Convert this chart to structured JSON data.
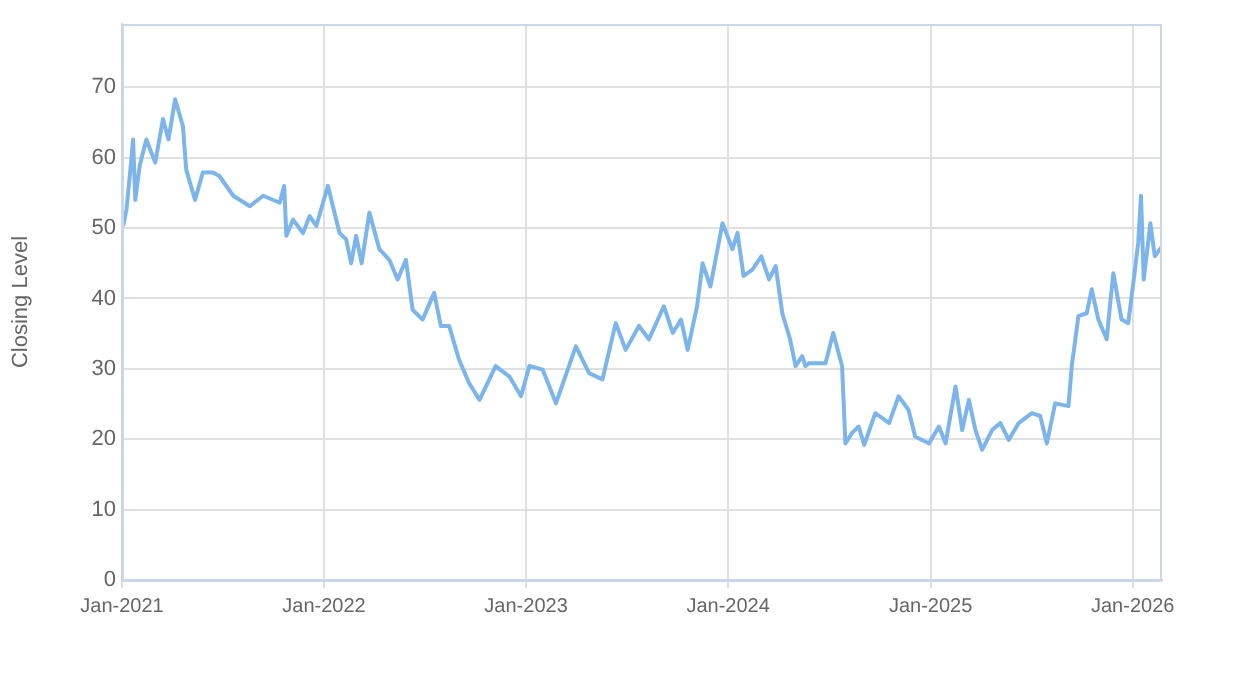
{
  "chart_data": {
    "type": "line",
    "ylabel": "Closing Level",
    "grid": true,
    "legend": false,
    "marker": "none",
    "line_style": "solid",
    "xlim": [
      "2021-01-01",
      "2026-02-23"
    ],
    "xticks": [
      {
        "value": "2021-01-01",
        "label": "Jan-2021"
      },
      {
        "value": "2022-01-01",
        "label": "Jan-2022"
      },
      {
        "value": "2023-01-01",
        "label": "Jan-2023"
      },
      {
        "value": "2024-01-01",
        "label": "Jan-2024"
      },
      {
        "value": "2025-01-01",
        "label": "Jan-2025"
      },
      {
        "value": "2026-01-01",
        "label": "Jan-2026"
      }
    ],
    "ylim": [
      0,
      79
    ],
    "yticks": [
      0,
      10,
      20,
      30,
      40,
      50,
      60,
      70
    ],
    "x": [
      "2021-01-03",
      "2021-01-09",
      "2021-01-18",
      "2021-01-21",
      "2021-01-25",
      "2021-02-02",
      "2021-02-14",
      "2021-03-02",
      "2021-03-16",
      "2021-03-26",
      "2021-04-07",
      "2021-04-21",
      "2021-04-27",
      "2021-05-13",
      "2021-05-27",
      "2021-06-14",
      "2021-06-26",
      "2021-07-21",
      "2021-08-20",
      "2021-09-13",
      "2021-10-13",
      "2021-10-21",
      "2021-10-25",
      "2021-11-06",
      "2021-11-24",
      "2021-12-06",
      "2021-12-18",
      "2022-01-08",
      "2022-01-29",
      "2022-02-10",
      "2022-02-19",
      "2022-02-28",
      "2022-03-10",
      "2022-03-24",
      "2022-04-11",
      "2022-04-29",
      "2022-05-14",
      "2022-05-29",
      "2022-06-10",
      "2022-06-28",
      "2022-07-19",
      "2022-07-31",
      "2022-08-15",
      "2022-09-02",
      "2022-09-20",
      "2022-10-09",
      "2022-11-07",
      "2022-12-02",
      "2022-12-23",
      "2023-01-07",
      "2023-01-31",
      "2023-02-24",
      "2023-04-01",
      "2023-04-25",
      "2023-05-19",
      "2023-06-12",
      "2023-06-30",
      "2023-07-24",
      "2023-08-11",
      "2023-09-07",
      "2023-09-23",
      "2023-10-08",
      "2023-10-20",
      "2023-11-06",
      "2023-11-16",
      "2023-11-30",
      "2023-12-22",
      "2024-01-09",
      "2024-01-18",
      "2024-01-29",
      "2024-02-14",
      "2024-03-01",
      "2024-03-15",
      "2024-03-27",
      "2024-04-08",
      "2024-04-22",
      "2024-05-02",
      "2024-05-14",
      "2024-05-20",
      "2024-05-26",
      "2024-06-25",
      "2024-07-09",
      "2024-07-25",
      "2024-07-31",
      "2024-08-12",
      "2024-08-24",
      "2024-09-03",
      "2024-09-23",
      "2024-10-18",
      "2024-11-04",
      "2024-11-22",
      "2024-12-04",
      "2024-12-29",
      "2025-01-16",
      "2025-01-28",
      "2025-02-15",
      "2025-02-27",
      "2025-03-11",
      "2025-03-23",
      "2025-04-04",
      "2025-04-22",
      "2025-05-07",
      "2025-05-22",
      "2025-06-09",
      "2025-07-03",
      "2025-07-18",
      "2025-07-30",
      "2025-08-14",
      "2025-09-07",
      "2025-09-13",
      "2025-09-25",
      "2025-10-10",
      "2025-10-19",
      "2025-10-31",
      "2025-11-15",
      "2025-11-27",
      "2025-12-12",
      "2025-12-24",
      "2026-01-03",
      "2026-01-11",
      "2026-01-16",
      "2026-01-21",
      "2026-02-02",
      "2026-02-10",
      "2026-02-23"
    ],
    "series": [
      {
        "color": "#7cb5ec",
        "values": [
          50.3,
          52.6,
          59.8,
          62.6,
          54,
          58.9,
          62.6,
          59.3,
          65.5,
          62.6,
          68.3,
          64.5,
          58.3,
          54,
          57.9,
          57.9,
          57.4,
          54.6,
          53.1,
          54.6,
          53.6,
          56,
          48.9,
          51.2,
          49.3,
          51.7,
          50.3,
          56,
          49.3,
          48.4,
          45,
          48.9,
          45,
          52.2,
          47,
          45.5,
          42.7,
          45.5,
          38.4,
          37,
          40.8,
          36.1,
          36.1,
          31.3,
          28,
          25.6,
          30.4,
          28.9,
          26.1,
          30.4,
          29.9,
          25.1,
          33.2,
          29.4,
          28.5,
          36.5,
          32.7,
          36.1,
          34.2,
          38.9,
          35.1,
          37,
          32.7,
          38.9,
          45,
          41.7,
          50.7,
          47,
          49.3,
          43.2,
          44.1,
          46,
          42.7,
          44.6,
          37.9,
          34.2,
          30.4,
          31.8,
          30.4,
          30.8,
          30.8,
          35.1,
          30.4,
          19.4,
          20.9,
          21.8,
          19.2,
          23.7,
          22.3,
          26.1,
          24.2,
          20.4,
          19.4,
          21.8,
          19.4,
          27.5,
          21.3,
          25.6,
          21.3,
          18.5,
          21.3,
          22.3,
          19.9,
          22.3,
          23.7,
          23.3,
          19.4,
          25.1,
          24.7,
          30.4,
          37.5,
          37.9,
          41.3,
          37,
          34.2,
          43.6,
          37,
          36.5,
          42.7,
          47.9,
          54.6,
          42.7,
          50.7,
          46,
          47.4
        ]
      }
    ]
  }
}
